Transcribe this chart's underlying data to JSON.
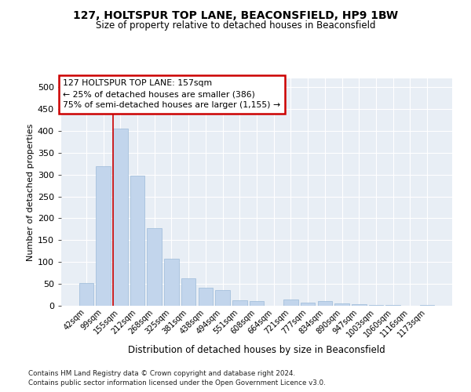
{
  "title1": "127, HOLTSPUR TOP LANE, BEACONSFIELD, HP9 1BW",
  "title2": "Size of property relative to detached houses in Beaconsfield",
  "xlabel": "Distribution of detached houses by size in Beaconsfield",
  "ylabel": "Number of detached properties",
  "footnote1": "Contains HM Land Registry data © Crown copyright and database right 2024.",
  "footnote2": "Contains public sector information licensed under the Open Government Licence v3.0.",
  "bar_labels": [
    "42sqm",
    "99sqm",
    "155sqm",
    "212sqm",
    "268sqm",
    "325sqm",
    "381sqm",
    "438sqm",
    "494sqm",
    "551sqm",
    "608sqm",
    "664sqm",
    "721sqm",
    "777sqm",
    "834sqm",
    "890sqm",
    "947sqm",
    "1003sqm",
    "1060sqm",
    "1116sqm",
    "1173sqm"
  ],
  "bar_values": [
    52,
    320,
    405,
    298,
    178,
    108,
    63,
    41,
    36,
    12,
    11,
    0,
    15,
    8,
    10,
    5,
    4,
    1,
    1,
    0,
    2
  ],
  "bar_color": "#c2d5ec",
  "bar_edge_color": "#9bbad8",
  "bg_color": "#e8eef5",
  "grid_color": "#ffffff",
  "ann_line1": "127 HOLTSPUR TOP LANE: 157sqm",
  "ann_line2": "← 25% of detached houses are smaller (386)",
  "ann_line3": "75% of semi-detached houses are larger (1,155) →",
  "vline_color": "#cc0000",
  "vline_x": 1.575,
  "ylim": [
    0,
    520
  ],
  "yticks": [
    0,
    50,
    100,
    150,
    200,
    250,
    300,
    350,
    400,
    450,
    500
  ],
  "ann_box_edgecolor": "#cc0000"
}
